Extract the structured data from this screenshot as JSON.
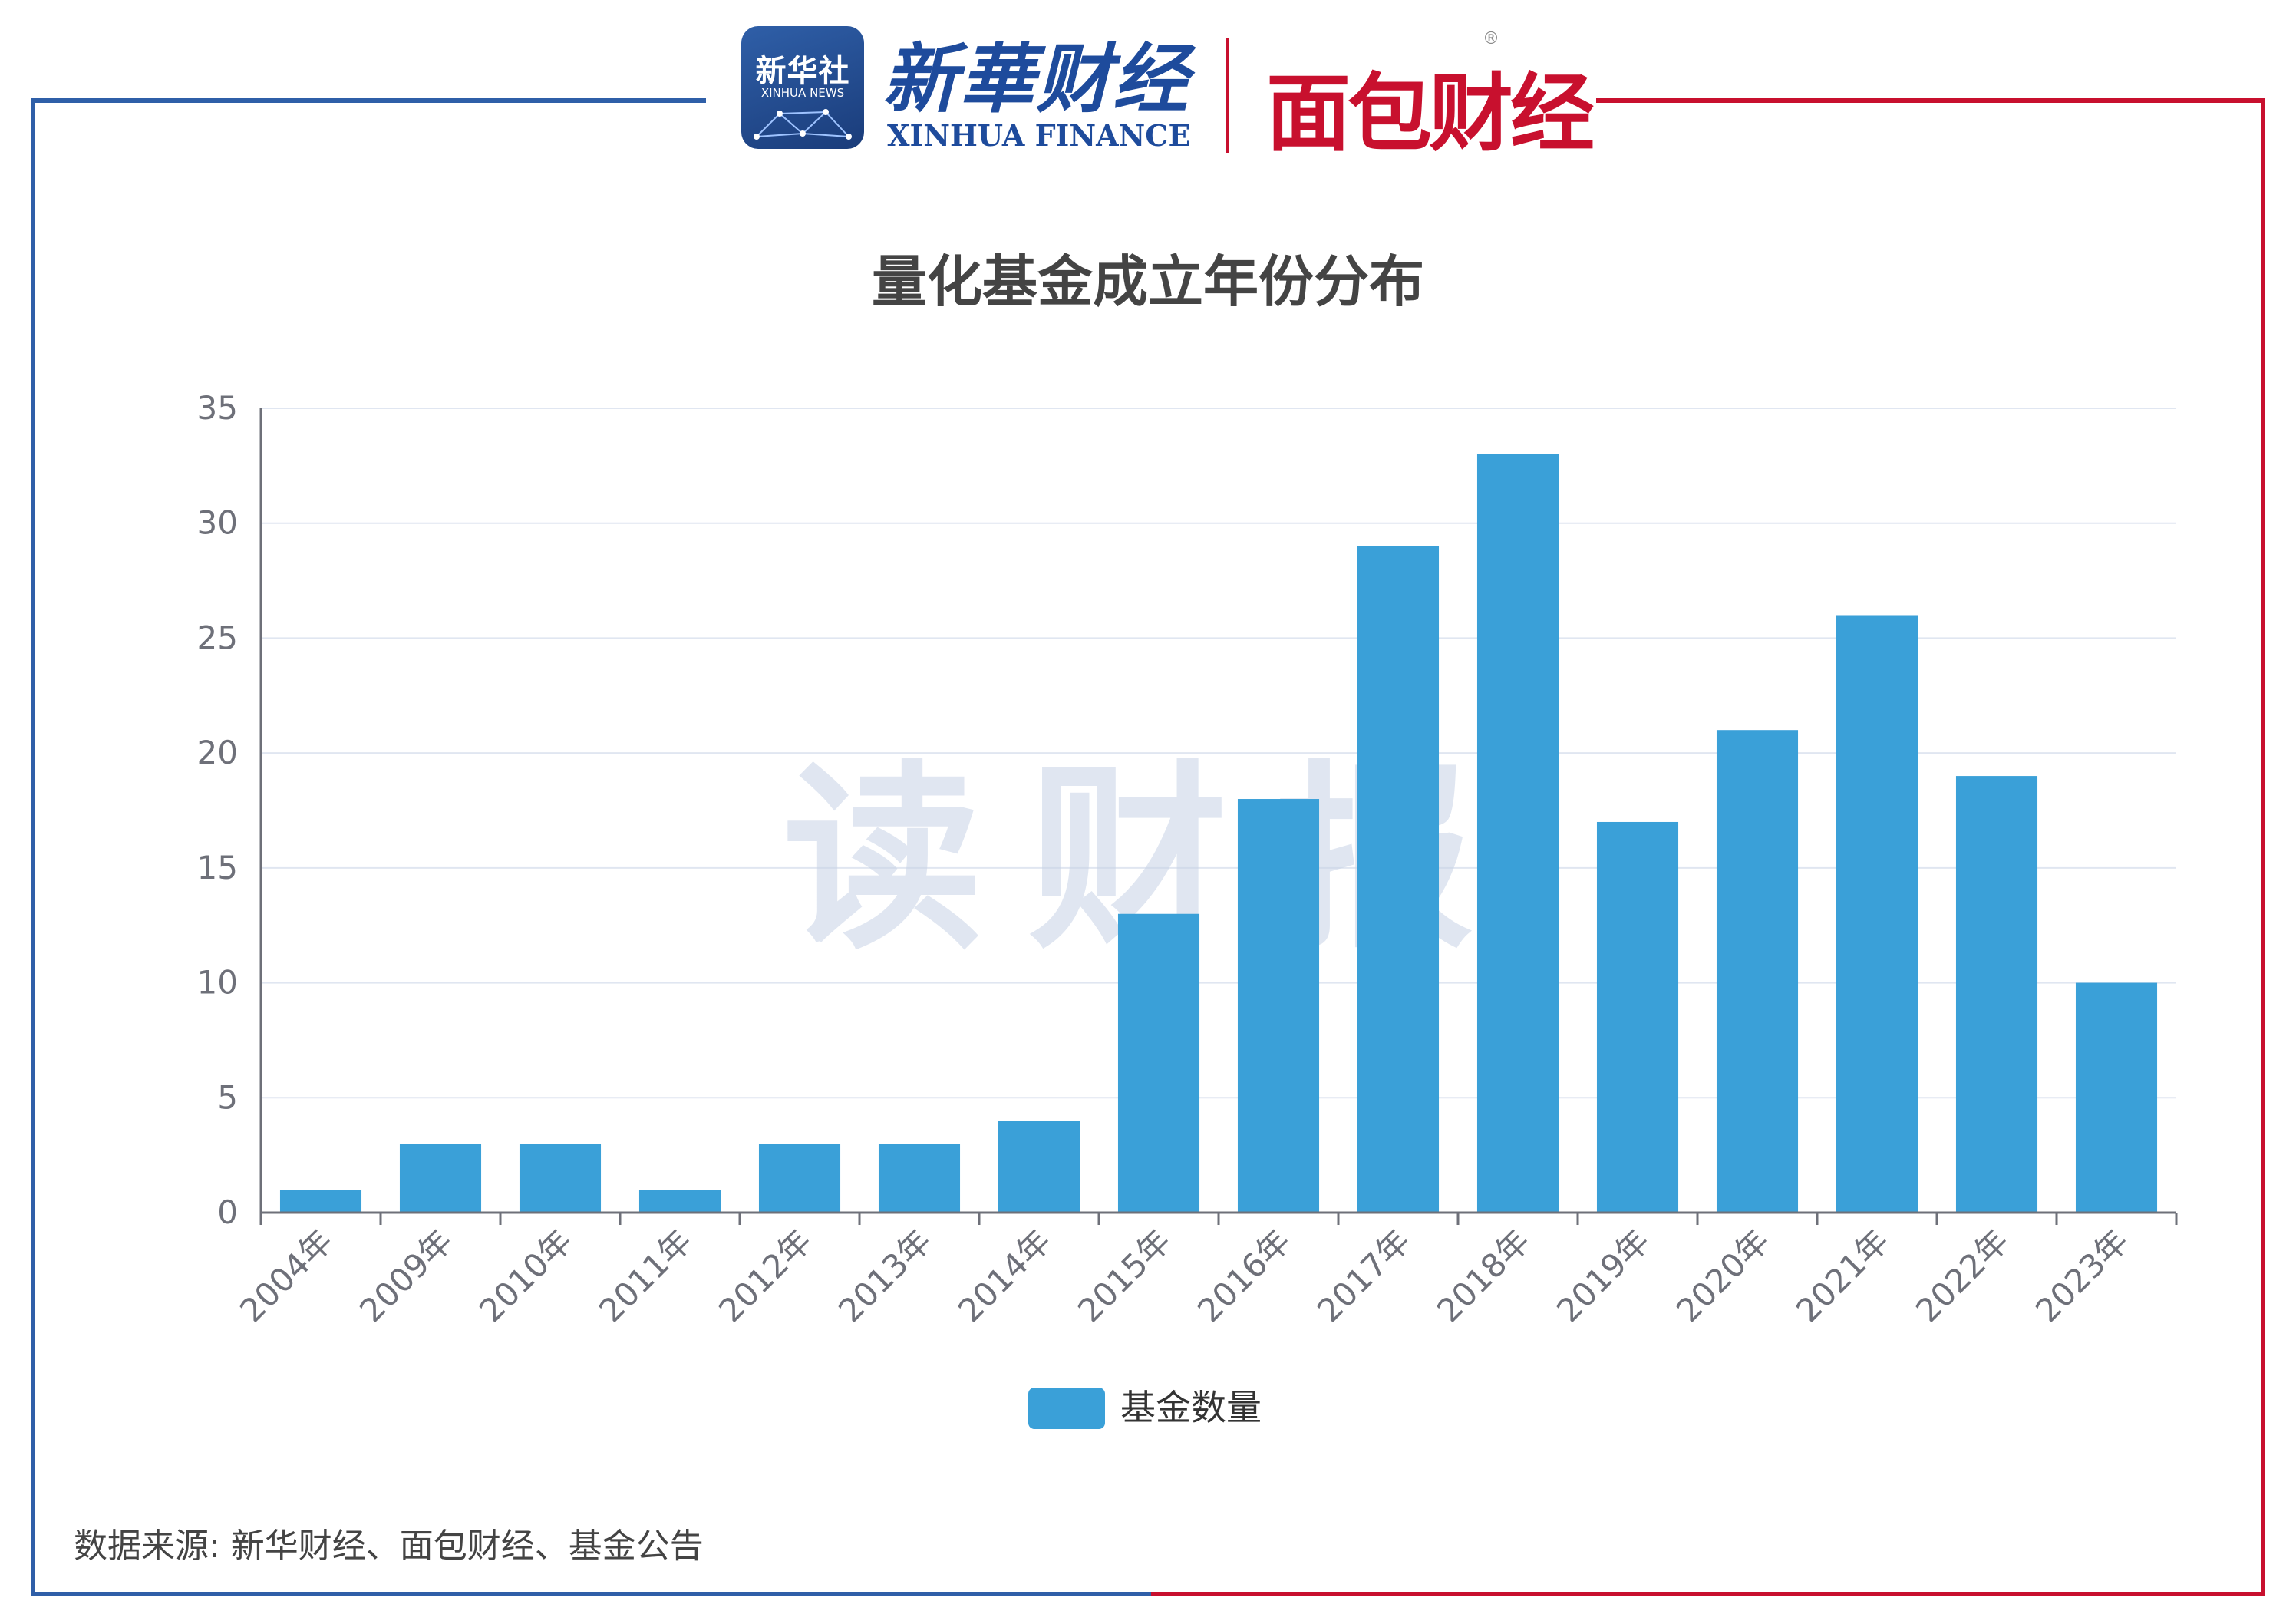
{
  "header": {
    "badge_cn": "新华社",
    "badge_en": "XINHUA NEWS",
    "brand_cn": "新華财经",
    "brand_en": "XINHUA FINANCE",
    "brand2": "面包财经",
    "reg_mark": "®"
  },
  "watermark": "读财报",
  "source": "数据来源: 新华财经、面包财经、基金公告",
  "colors": {
    "bar": "#3aa0d8",
    "frame_left": "#2f5fa8",
    "frame_right": "#c8102e",
    "grid": "#e0e6f1"
  },
  "chart_data": {
    "type": "bar",
    "title": "量化基金成立年份分布",
    "categories": [
      "2004年",
      "2009年",
      "2010年",
      "2011年",
      "2012年",
      "2013年",
      "2014年",
      "2015年",
      "2016年",
      "2017年",
      "2018年",
      "2019年",
      "2020年",
      "2021年",
      "2022年",
      "2023年"
    ],
    "series": [
      {
        "name": "基金数量",
        "values": [
          1,
          3,
          3,
          1,
          3,
          3,
          4,
          13,
          18,
          29,
          33,
          17,
          21,
          26,
          19,
          10
        ]
      }
    ],
    "ylim": [
      0,
      35
    ],
    "yticks": [
      0,
      5,
      10,
      15,
      20,
      25,
      30,
      35
    ],
    "grid": true,
    "legend": "bottom-center"
  }
}
